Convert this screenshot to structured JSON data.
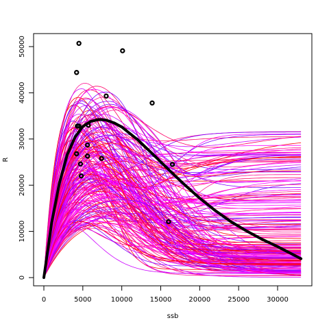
{
  "chart_data": {
    "type": "line",
    "title": "",
    "xlabel": "ssb",
    "ylabel": "R",
    "xlim": [
      0,
      33000
    ],
    "ylim": [
      0,
      51000
    ],
    "x_ticks": [
      "0",
      "5000",
      "10000",
      "15000",
      "20000",
      "25000",
      "30000"
    ],
    "y_ticks": [
      "0",
      "10000",
      "20000",
      "30000",
      "40000",
      "50000"
    ],
    "grid": false,
    "legend": "none",
    "fitted_curve": {
      "model": "ricker",
      "peak_ssb": 7300,
      "peak_r": 34200,
      "x": [
        0,
        1000,
        2000,
        3000,
        4000,
        5000,
        6000,
        7000,
        7300,
        8000,
        9000,
        10000,
        12000,
        14000,
        16000,
        18000,
        20000,
        22000,
        24000,
        26000,
        28000,
        30000,
        33000
      ],
      "values": [
        0,
        11900,
        20500,
        26600,
        30400,
        32700,
        33800,
        34200,
        34200,
        34100,
        33500,
        32600,
        29900,
        26700,
        23400,
        20200,
        17200,
        14500,
        12100,
        10100,
        8300,
        6700,
        4100
      ],
      "color": "#000000"
    },
    "observations": {
      "x": [
        4500,
        4200,
        10100,
        4300,
        8000,
        13900,
        4500,
        5700,
        5600,
        4200,
        5600,
        7400,
        4700,
        16500,
        4800,
        16000
      ],
      "y": [
        50700,
        44400,
        49100,
        32800,
        39300,
        37800,
        32800,
        33000,
        28700,
        26800,
        26300,
        25800,
        24600,
        24500,
        22000,
        12100
      ]
    },
    "simulated_series": {
      "count": 200,
      "colors": [
        "#FF00FF",
        "#FF1493",
        "#FF0066",
        "#FF0000",
        "#CC00FF",
        "#8000FF"
      ]
    }
  }
}
